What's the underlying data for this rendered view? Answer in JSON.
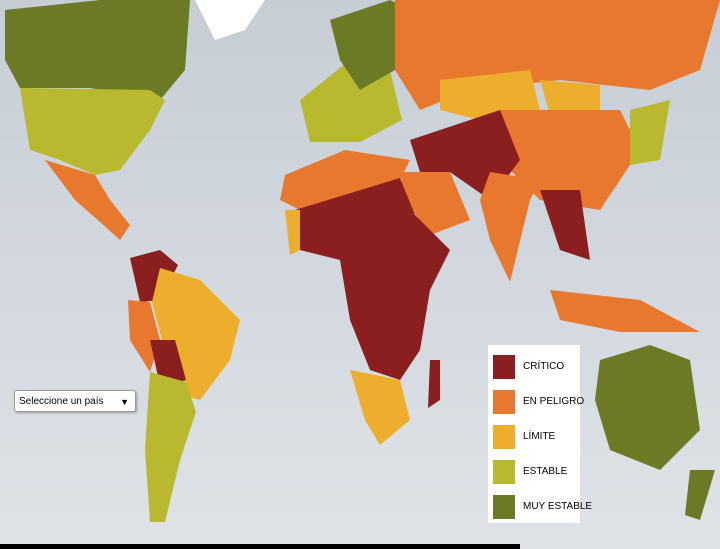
{
  "legend": {
    "items": [
      {
        "label": "CRÍTICO",
        "color": "#8b1e1e"
      },
      {
        "label": "EN PELIGRO",
        "color": "#e8782e"
      },
      {
        "label": "LÍMITE",
        "color": "#ecae2c"
      },
      {
        "label": "ESTABLE",
        "color": "#b9b930"
      },
      {
        "label": "MUY ESTABLE",
        "color": "#6b7a24"
      }
    ]
  },
  "selector": {
    "placeholder": "Seleccione un país"
  }
}
